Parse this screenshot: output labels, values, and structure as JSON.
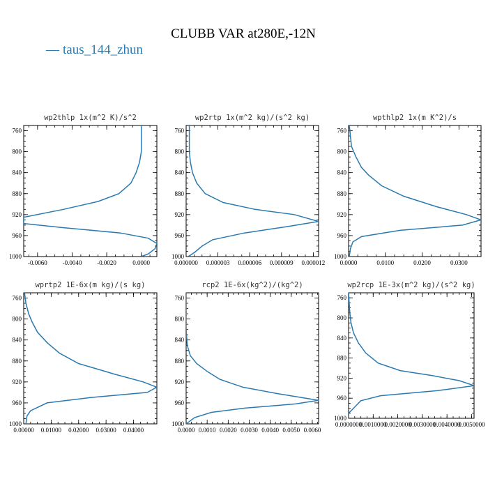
{
  "figure": {
    "title": "CLUBB VAR at280E,-12N",
    "legend_label": "taus_144_zhun",
    "line_color": "#2a7ab0",
    "legend_symbol": "—"
  },
  "chart_data": [
    {
      "type": "line",
      "title": "wp2thlp   1x(m^2 K)/s^2",
      "xlabel": "",
      "ylabel": "",
      "xlim": [
        -0.0068,
        0.0009
      ],
      "ylim": [
        1000,
        750
      ],
      "xticks": [
        -0.006,
        -0.004,
        -0.002,
        0.0
      ],
      "xtick_labels": [
        "-0.0060",
        "-0.0040",
        "-0.0020",
        "0.0000"
      ],
      "yticks": [
        760,
        800,
        840,
        880,
        920,
        960,
        1000
      ],
      "series": [
        {
          "x": [
            0.0,
            0.0,
            -0.0001,
            -0.0003,
            -0.0006,
            -0.0013,
            -0.0025,
            -0.0045,
            -0.0068,
            -0.0068,
            -0.0045,
            -0.0012,
            0.0004,
            0.0009,
            0.0008,
            0.0004,
            0.0
          ],
          "y": [
            750,
            800,
            820,
            840,
            860,
            880,
            895,
            910,
            925,
            937,
            945,
            955,
            965,
            975,
            985,
            995,
            1000
          ]
        }
      ]
    },
    {
      "type": "line",
      "title": "wp2rtp   1x(m^2 kg)/(s^2 kg)",
      "xlabel": "",
      "ylabel": "",
      "xlim": [
        0,
        1.25e-05
      ],
      "ylim": [
        1000,
        750
      ],
      "xticks": [
        0,
        3e-06,
        6e-06,
        9e-06,
        1.2e-05
      ],
      "xtick_labels": [
        "0.000000",
        "0.000003",
        "0.000006",
        "0.000009",
        "0.000012"
      ],
      "yticks": [
        760,
        800,
        840,
        880,
        920,
        960,
        1000
      ],
      "series": [
        {
          "x": [
            3e-07,
            3e-07,
            4e-07,
            6e-07,
            1e-06,
            1.8e-06,
            3.5e-06,
            6.5e-06,
            1.02e-05,
            1.25e-05,
            9.5e-06,
            5.5e-06,
            2.5e-06,
            1.5e-06,
            8e-07,
            2e-07
          ],
          "y": [
            750,
            800,
            820,
            840,
            860,
            880,
            897,
            910,
            920,
            933,
            943,
            955,
            968,
            980,
            992,
            1000
          ]
        }
      ]
    },
    {
      "type": "line",
      "title": "wpthlp2   1x(m K^2)/s",
      "xlabel": "",
      "ylabel": "",
      "xlim": [
        0,
        0.036
      ],
      "ylim": [
        1000,
        750
      ],
      "xticks": [
        0,
        0.01,
        0.02,
        0.03
      ],
      "xtick_labels": [
        "0.0000",
        "0.0100",
        "0.0200",
        "0.0300"
      ],
      "yticks": [
        760,
        800,
        840,
        880,
        920,
        960,
        1000
      ],
      "series": [
        {
          "x": [
            0.0002,
            0.0008,
            0.002,
            0.0035,
            0.0055,
            0.009,
            0.015,
            0.024,
            0.032,
            0.036,
            0.031,
            0.014,
            0.0035,
            0.0012,
            0.0005,
            0.0002
          ],
          "y": [
            750,
            790,
            810,
            830,
            845,
            865,
            885,
            905,
            920,
            930,
            940,
            950,
            962,
            972,
            985,
            1000
          ]
        }
      ]
    },
    {
      "type": "line",
      "title": "wprtp2   1E-6x(m kg)/(s kg)",
      "xlabel": "",
      "ylabel": "",
      "xlim": [
        0,
        0.0485
      ],
      "ylim": [
        1000,
        750
      ],
      "xticks": [
        0,
        0.01,
        0.02,
        0.03,
        0.04
      ],
      "xtick_labels": [
        "0.00000",
        "0.01000",
        "0.02000",
        "0.03000",
        "0.04000"
      ],
      "yticks": [
        760,
        800,
        840,
        880,
        920,
        960,
        1000
      ],
      "series": [
        {
          "x": [
            0.0003,
            0.0008,
            0.0018,
            0.003,
            0.005,
            0.0085,
            0.013,
            0.02,
            0.033,
            0.0435,
            0.0485,
            0.045,
            0.024,
            0.0085,
            0.0025,
            0.0012,
            0.0008
          ],
          "y": [
            750,
            770,
            790,
            805,
            825,
            845,
            865,
            885,
            905,
            920,
            930,
            940,
            950,
            960,
            975,
            985,
            1000
          ]
        }
      ]
    },
    {
      "type": "line",
      "title": "rcp2   1E-6x(kg^2)/(kg^2)",
      "xlabel": "",
      "ylabel": "",
      "xlim": [
        0,
        0.0063
      ],
      "ylim": [
        1000,
        750
      ],
      "xticks": [
        0,
        0.001,
        0.002,
        0.003,
        0.004,
        0.005,
        0.006
      ],
      "xtick_labels": [
        "0.0000",
        "0.0010",
        "0.0020",
        "0.0030",
        "0.0040",
        "0.0050",
        "0.0060"
      ],
      "yticks": [
        760,
        800,
        840,
        880,
        920,
        960,
        1000
      ],
      "series": [
        {
          "x": [
            0.0,
            0.0,
            5e-05,
            0.0002,
            0.0005,
            0.001,
            0.0016,
            0.0027,
            0.0043,
            0.0063,
            0.0052,
            0.0028,
            0.0012,
            0.0004,
            0.0
          ],
          "y": [
            750,
            820,
            850,
            870,
            885,
            900,
            915,
            930,
            942,
            955,
            962,
            970,
            978,
            988,
            1000
          ]
        }
      ]
    },
    {
      "type": "line",
      "title": "wp2rcp   1E-3x(m^2 kg)/(s^2 kg)",
      "xlabel": "",
      "ylabel": "",
      "xlim": [
        0,
        0.0051
      ],
      "ylim": [
        1000,
        750
      ],
      "xticks": [
        0,
        0.001,
        0.002,
        0.003,
        0.004,
        0.005
      ],
      "xtick_labels": [
        "0.0000000",
        "0.0010000",
        "0.0020000",
        "0.0030000",
        "0.0040000",
        "0.0050000"
      ],
      "yticks": [
        760,
        800,
        840,
        880,
        920,
        960,
        1000
      ],
      "series": [
        {
          "x": [
            0.0,
            5e-05,
            0.0001,
            0.0002,
            0.0004,
            0.0007,
            0.0012,
            0.0021,
            0.0034,
            0.0045,
            0.0051,
            0.0036,
            0.0013,
            0.0005,
            0.0002,
            0.0
          ],
          "y": [
            750,
            790,
            810,
            830,
            850,
            870,
            890,
            905,
            915,
            925,
            935,
            945,
            955,
            965,
            980,
            990
          ]
        }
      ]
    }
  ]
}
